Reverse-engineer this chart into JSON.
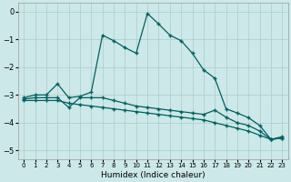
{
  "xlabel": "Humidex (Indice chaleur)",
  "bg_color": "#cde8e8",
  "grid_color": "#aacccc",
  "line_color": "#006060",
  "xlim": [
    -0.5,
    23.5
  ],
  "ylim": [
    -5.3,
    0.3
  ],
  "yticks": [
    0,
    -1,
    -2,
    -3,
    -4,
    -5
  ],
  "xticks": [
    0,
    1,
    2,
    3,
    4,
    5,
    6,
    7,
    8,
    9,
    10,
    11,
    12,
    13,
    14,
    15,
    16,
    17,
    18,
    19,
    20,
    21,
    22,
    23
  ],
  "line1_x": [
    0,
    1,
    2,
    3,
    4,
    5,
    6,
    7,
    8,
    9,
    10,
    11,
    12,
    13,
    14,
    15,
    16,
    17,
    18,
    19,
    20,
    21,
    22,
    23
  ],
  "line1_y": [
    -3.1,
    -3.0,
    -3.0,
    -2.6,
    -3.1,
    -3.05,
    -2.9,
    -0.85,
    -1.05,
    -1.3,
    -1.5,
    -0.07,
    -0.45,
    -0.85,
    -1.05,
    -1.5,
    -2.1,
    -2.4,
    -3.5,
    -3.65,
    -3.82,
    -4.1,
    -4.6,
    -4.5
  ],
  "line2_x": [
    0,
    1,
    2,
    3,
    4,
    5,
    6,
    7,
    8,
    9,
    10,
    11,
    12,
    13,
    14,
    15,
    16,
    17,
    18,
    19,
    20,
    21,
    22,
    23
  ],
  "line2_y": [
    -3.15,
    -3.1,
    -3.1,
    -3.1,
    -3.45,
    -3.1,
    -3.1,
    -3.1,
    -3.2,
    -3.3,
    -3.4,
    -3.45,
    -3.5,
    -3.55,
    -3.6,
    -3.65,
    -3.7,
    -3.55,
    -3.8,
    -4.0,
    -4.1,
    -4.3,
    -4.6,
    -4.55
  ],
  "line3_x": [
    0,
    1,
    2,
    3,
    4,
    5,
    6,
    7,
    8,
    9,
    10,
    11,
    12,
    13,
    14,
    15,
    16,
    17,
    18,
    19,
    20,
    21,
    22,
    23
  ],
  "line3_y": [
    -3.2,
    -3.2,
    -3.2,
    -3.2,
    -3.3,
    -3.35,
    -3.4,
    -3.45,
    -3.5,
    -3.55,
    -3.6,
    -3.65,
    -3.7,
    -3.75,
    -3.8,
    -3.85,
    -3.9,
    -4.0,
    -4.1,
    -4.2,
    -4.3,
    -4.45,
    -4.6,
    -4.55
  ]
}
